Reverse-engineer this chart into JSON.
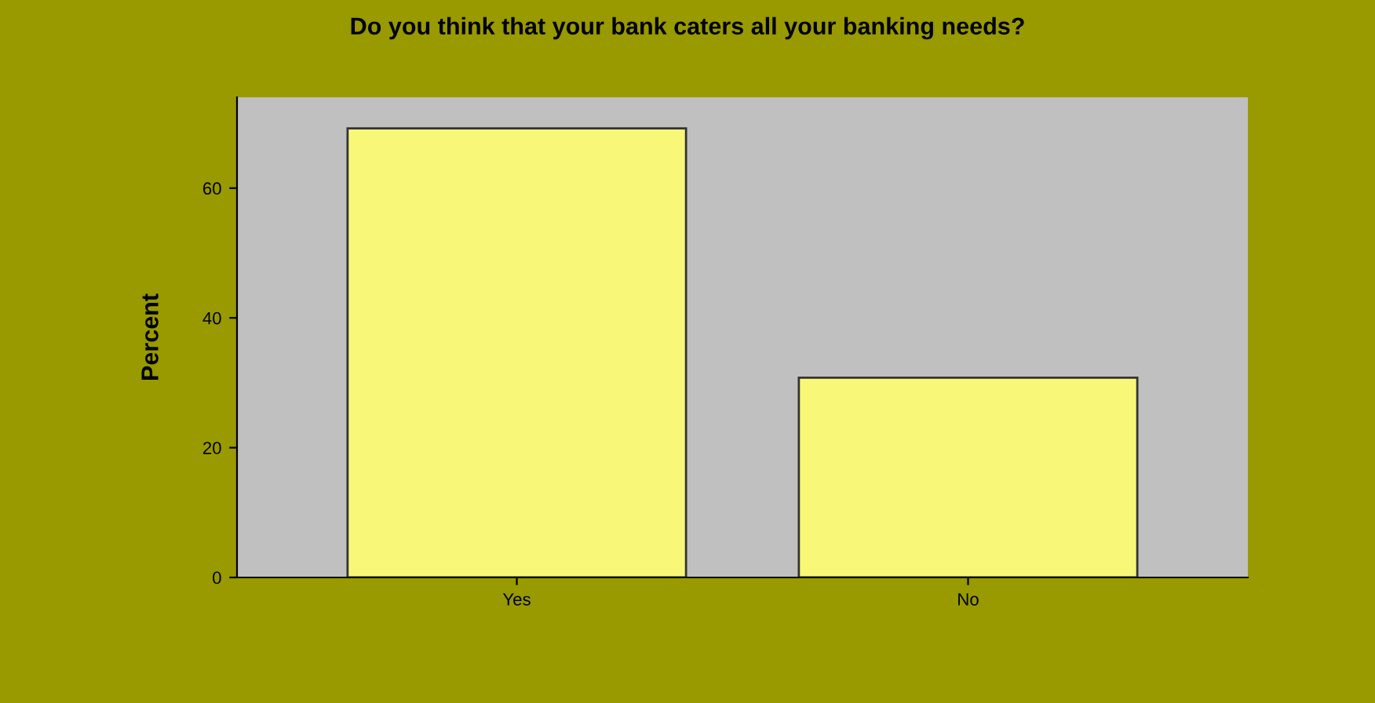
{
  "chart_data": {
    "type": "bar",
    "title": "Do you think that your bank caters all your banking needs?",
    "ylabel": "Percent",
    "categories": [
      "Yes",
      "No"
    ],
    "values": [
      69.2,
      30.8
    ],
    "color": "#f9f777",
    "ylim": [
      0,
      74
    ],
    "yticks": [
      0,
      20,
      40,
      60
    ],
    "grid": false,
    "legend": false
  }
}
